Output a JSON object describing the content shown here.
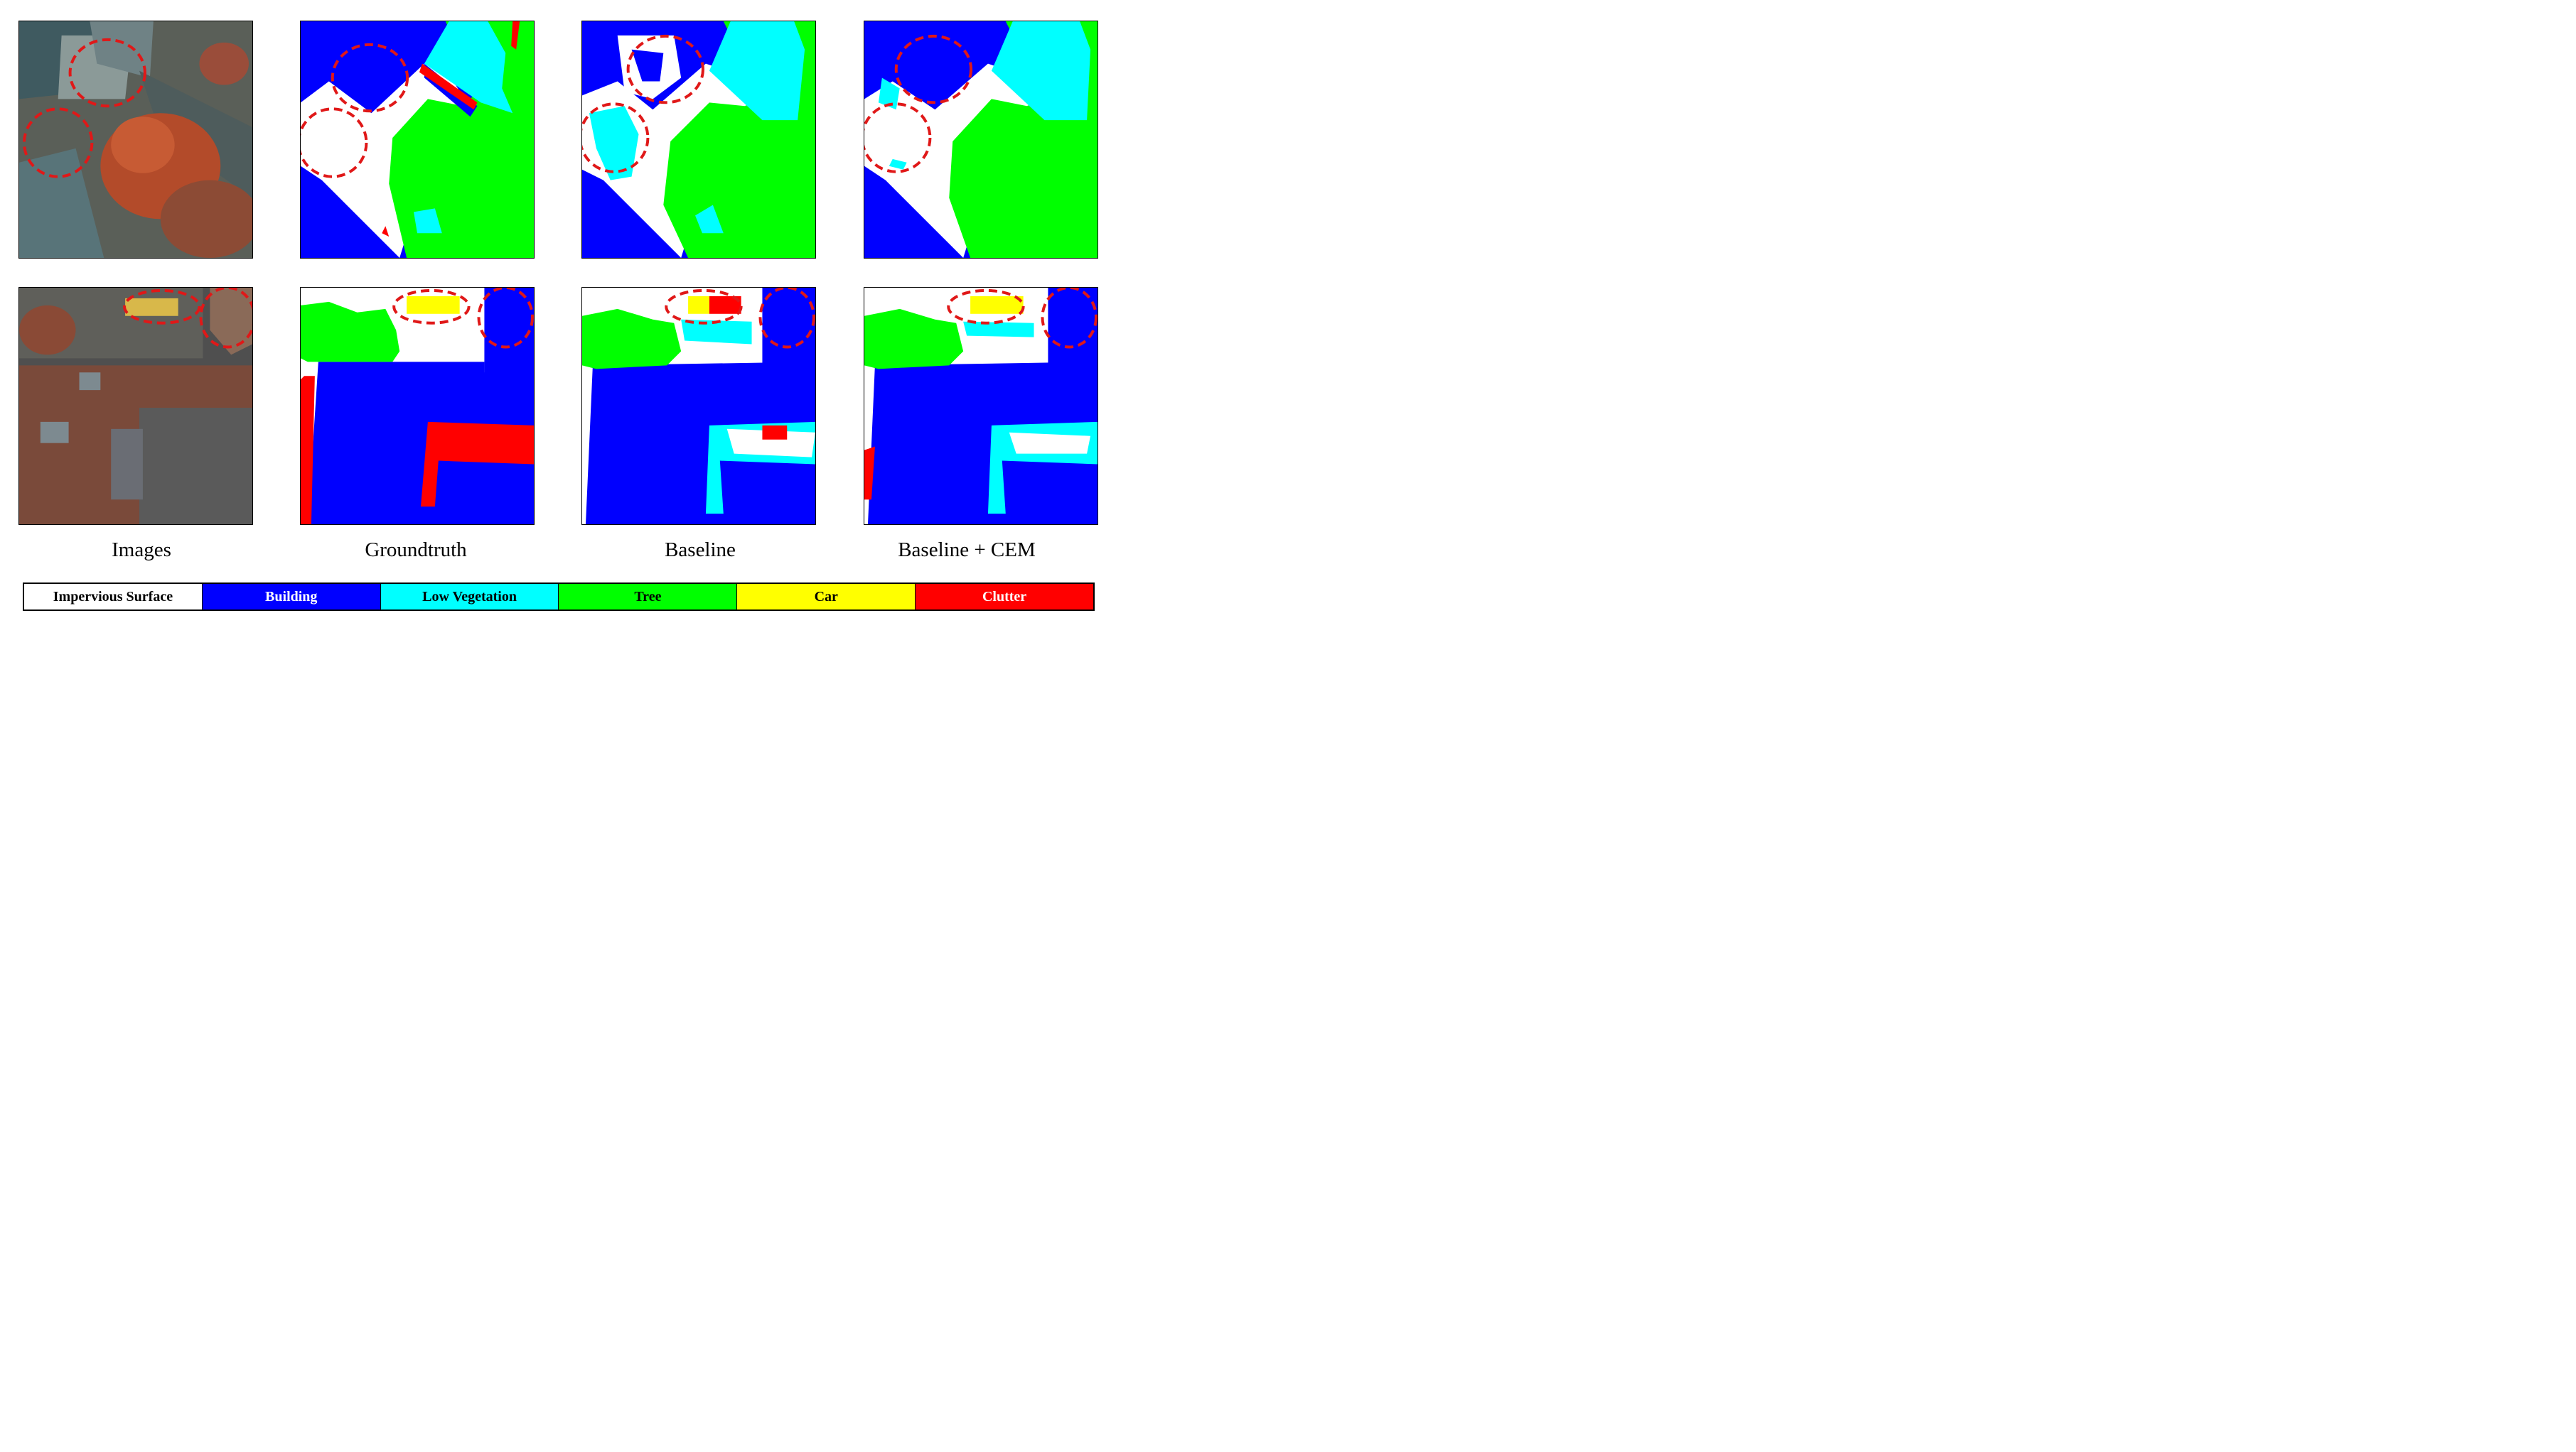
{
  "columns": [
    "Images",
    "Groundtruth",
    "Baseline",
    "Baseline + CEM"
  ],
  "legend": [
    {
      "label": "Impervious Surface",
      "color": "#ffffff",
      "text_color": "#000000"
    },
    {
      "label": "Building",
      "color": "#0000ff",
      "text_color": "#ffffff"
    },
    {
      "label": "Low Vegetation",
      "color": "#00ffff",
      "text_color": "#000000"
    },
    {
      "label": "Tree",
      "color": "#00ff00",
      "text_color": "#000000"
    },
    {
      "label": "Car",
      "color": "#ffff00",
      "text_color": "#000000"
    },
    {
      "label": "Clutter",
      "color": "#ff0000",
      "text_color": "#ffffff"
    }
  ],
  "colors": {
    "impervious": "#ffffff",
    "building": "#0000ff",
    "low_vegetation": "#00ffff",
    "tree": "#00ff00",
    "car": "#ffff00",
    "clutter": "#ff0000",
    "highlight": "#e01818"
  }
}
